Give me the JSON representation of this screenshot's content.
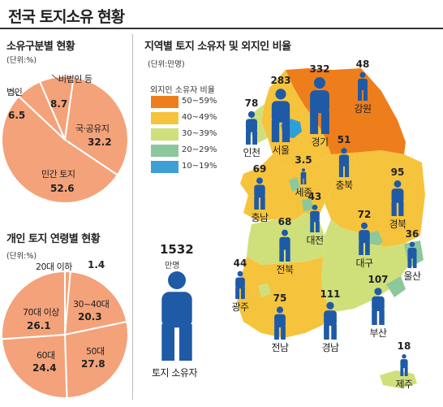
{
  "title": "전국 토지소유 현황",
  "colors": {
    "pie_fill": "#f4a27a",
    "pie_stroke": "#ffffff",
    "person": "#1f5aa6",
    "legend": [
      "#ee7d1c",
      "#f6c33c",
      "#cfe07a",
      "#8cc89b",
      "#3e9fd6"
    ],
    "sea": "#ffffff",
    "water": "#2f9fd8"
  },
  "chart_data": [
    {
      "type": "pie",
      "title": "소유구분별 현황",
      "unit": "(단위:%)",
      "slices": [
        {
          "label": "비법인 등",
          "value": 8.7
        },
        {
          "label": "국·공유지",
          "value": 32.2
        },
        {
          "label": "민간 토지",
          "value": 52.6
        },
        {
          "label": "법인",
          "value": 6.5
        }
      ]
    },
    {
      "type": "pie",
      "title": "개인 토지 연령별 현황",
      "unit": "(단위:%)",
      "slices": [
        {
          "label": "20대 이하",
          "value": 1.4
        },
        {
          "label": "30~40대",
          "value": 20.3
        },
        {
          "label": "50대",
          "value": 27.8
        },
        {
          "label": "60대",
          "value": 24.4
        },
        {
          "label": "70대 이상",
          "value": 26.1
        }
      ]
    },
    {
      "type": "map",
      "title": "지역별 토지 소유자 및 외지인 비율",
      "unit": "(단위:만명)",
      "legend_title": "외지인 소유자 비율",
      "legend": [
        "50~59%",
        "40~49%",
        "30~39%",
        "20~29%",
        "10~19%"
      ],
      "regions": [
        {
          "name": "서울",
          "value": 283
        },
        {
          "name": "경기",
          "value": 332
        },
        {
          "name": "강원",
          "value": 48
        },
        {
          "name": "인천",
          "value": 78
        },
        {
          "name": "충북",
          "value": 51
        },
        {
          "name": "세종",
          "value": 3.5
        },
        {
          "name": "충남",
          "value": 69
        },
        {
          "name": "대전",
          "value": 43
        },
        {
          "name": "경북",
          "value": 95
        },
        {
          "name": "대구",
          "value": 72
        },
        {
          "name": "전북",
          "value": 68
        },
        {
          "name": "울산",
          "value": 36
        },
        {
          "name": "광주",
          "value": 44
        },
        {
          "name": "전남",
          "value": 75
        },
        {
          "name": "경남",
          "value": 111
        },
        {
          "name": "부산",
          "value": 107
        },
        {
          "name": "제주",
          "value": 18
        }
      ],
      "total": {
        "value": 1532,
        "unit": "만명",
        "label": "토지 소유자"
      }
    }
  ]
}
